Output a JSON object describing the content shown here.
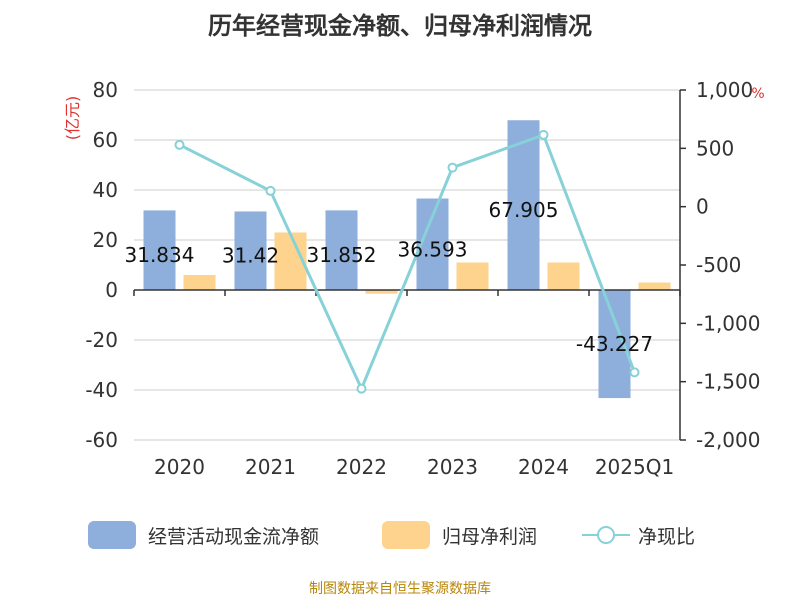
{
  "title": "历年经营现金净额、归母净利润情况",
  "source": "制图数据来自恒生聚源数据库",
  "colors": {
    "cash_flow": "#8eaedb",
    "net_profit": "#fed38e",
    "ratio": "#87d1d8",
    "axis": "#333333",
    "grid": "#cccccc",
    "unit_red": "#e03030"
  },
  "chart_data": {
    "type": "bar",
    "title": "历年经营现金净额、归母净利润情况",
    "categories": [
      "2020",
      "2021",
      "2022",
      "2023",
      "2024",
      "2025Q1"
    ],
    "left_axis": {
      "unit": "(亿元)",
      "ylim": [
        -60,
        80
      ],
      "ticks": [
        "80",
        "60",
        "40",
        "20",
        "0",
        "-20",
        "-40",
        "-60"
      ]
    },
    "right_axis": {
      "unit": "%",
      "ylim": [
        -2000,
        1000
      ],
      "ticks": [
        "1,000",
        "500",
        "0",
        "-500",
        "-1,000",
        "-1,500",
        "-2,000"
      ]
    },
    "grid": true,
    "legend_position": "bottom",
    "series": [
      {
        "name": "经营活动现金流净额",
        "type": "bar",
        "axis": "left",
        "values": [
          31.834,
          31.42,
          31.852,
          36.593,
          67.905,
          -43.227
        ],
        "labels": [
          "31.834",
          "31.42",
          "31.852",
          "36.593",
          "67.905",
          "-43.227"
        ]
      },
      {
        "name": "归母净利润",
        "type": "bar",
        "axis": "left",
        "values": [
          6,
          23,
          -1.5,
          11,
          11,
          3
        ]
      },
      {
        "name": "净现比",
        "type": "line",
        "axis": "right",
        "values": [
          530,
          135,
          -1560,
          335,
          615,
          -1420
        ]
      }
    ]
  }
}
